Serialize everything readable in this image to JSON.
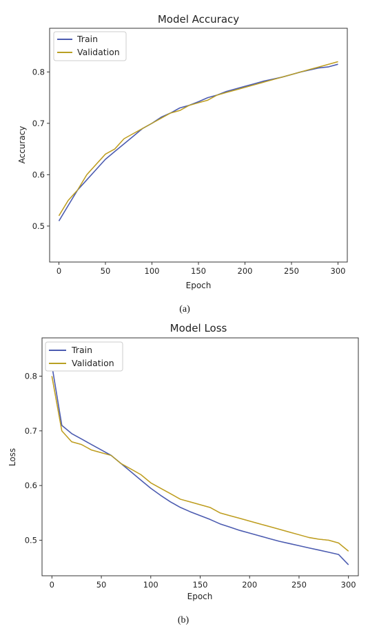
{
  "colors": {
    "train": "#4b5bb0",
    "validation": "#b8a022",
    "validation_overlay": "#ff8c1a"
  },
  "chart_data": [
    {
      "type": "line",
      "panel_label": "(a)",
      "title": "Model Accuracy",
      "xlabel": "Epoch",
      "ylabel": "Accuracy",
      "xlim": [
        -10,
        310
      ],
      "ylim": [
        0.43,
        0.885
      ],
      "xticks": [
        0,
        50,
        100,
        150,
        200,
        250,
        300
      ],
      "yticks": [
        0.5,
        0.6,
        0.7,
        0.8
      ],
      "grid": false,
      "legend": "top-left",
      "x": [
        0,
        10,
        20,
        30,
        40,
        50,
        60,
        70,
        80,
        90,
        100,
        110,
        120,
        130,
        140,
        150,
        160,
        170,
        180,
        190,
        200,
        210,
        220,
        230,
        240,
        250,
        260,
        270,
        280,
        290,
        300
      ],
      "series": [
        {
          "name": "Train",
          "color_key": "train",
          "values": [
            0.51,
            0.54,
            0.57,
            0.59,
            0.61,
            0.63,
            0.645,
            0.66,
            0.675,
            0.69,
            0.7,
            0.712,
            0.72,
            0.73,
            0.735,
            0.742,
            0.75,
            0.755,
            0.762,
            0.767,
            0.772,
            0.777,
            0.782,
            0.786,
            0.79,
            0.795,
            0.8,
            0.804,
            0.808,
            0.81,
            0.815
          ]
        },
        {
          "name": "Validation",
          "color_key": "validation",
          "values": [
            0.52,
            0.55,
            0.57,
            0.6,
            0.62,
            0.64,
            0.65,
            0.67,
            0.68,
            0.69,
            0.7,
            0.71,
            0.72,
            0.725,
            0.735,
            0.74,
            0.745,
            0.755,
            0.76,
            0.765,
            0.77,
            0.775,
            0.78,
            0.785,
            0.79,
            0.795,
            0.8,
            0.805,
            0.81,
            0.815,
            0.82
          ]
        }
      ]
    },
    {
      "type": "line",
      "panel_label": "(b)",
      "title": "Model Loss",
      "xlabel": "Epoch",
      "ylabel": "Loss",
      "xlim": [
        -10,
        310
      ],
      "ylim": [
        0.435,
        0.87
      ],
      "xticks": [
        0,
        50,
        100,
        150,
        200,
        250,
        300
      ],
      "yticks": [
        0.5,
        0.6,
        0.7,
        0.8
      ],
      "grid": false,
      "legend": "top-left",
      "x": [
        0,
        10,
        20,
        30,
        40,
        50,
        60,
        70,
        80,
        90,
        100,
        110,
        120,
        130,
        140,
        150,
        160,
        170,
        180,
        190,
        200,
        210,
        220,
        230,
        240,
        250,
        260,
        270,
        280,
        290,
        300
      ],
      "series": [
        {
          "name": "Train",
          "color_key": "train",
          "values": [
            0.82,
            0.71,
            0.695,
            0.685,
            0.675,
            0.665,
            0.655,
            0.64,
            0.625,
            0.61,
            0.595,
            0.582,
            0.57,
            0.56,
            0.552,
            0.545,
            0.538,
            0.53,
            0.524,
            0.518,
            0.513,
            0.508,
            0.503,
            0.498,
            0.494,
            0.49,
            0.486,
            0.482,
            0.478,
            0.474,
            0.455
          ]
        },
        {
          "name": "Validation",
          "color_key": "validation",
          "values": [
            0.8,
            0.7,
            0.68,
            0.675,
            0.665,
            0.66,
            0.655,
            0.64,
            0.63,
            0.62,
            0.605,
            0.595,
            0.585,
            0.575,
            0.57,
            0.565,
            0.56,
            0.55,
            0.545,
            0.54,
            0.535,
            0.53,
            0.525,
            0.52,
            0.515,
            0.51,
            0.505,
            0.502,
            0.5,
            0.495,
            0.48
          ]
        }
      ]
    }
  ]
}
